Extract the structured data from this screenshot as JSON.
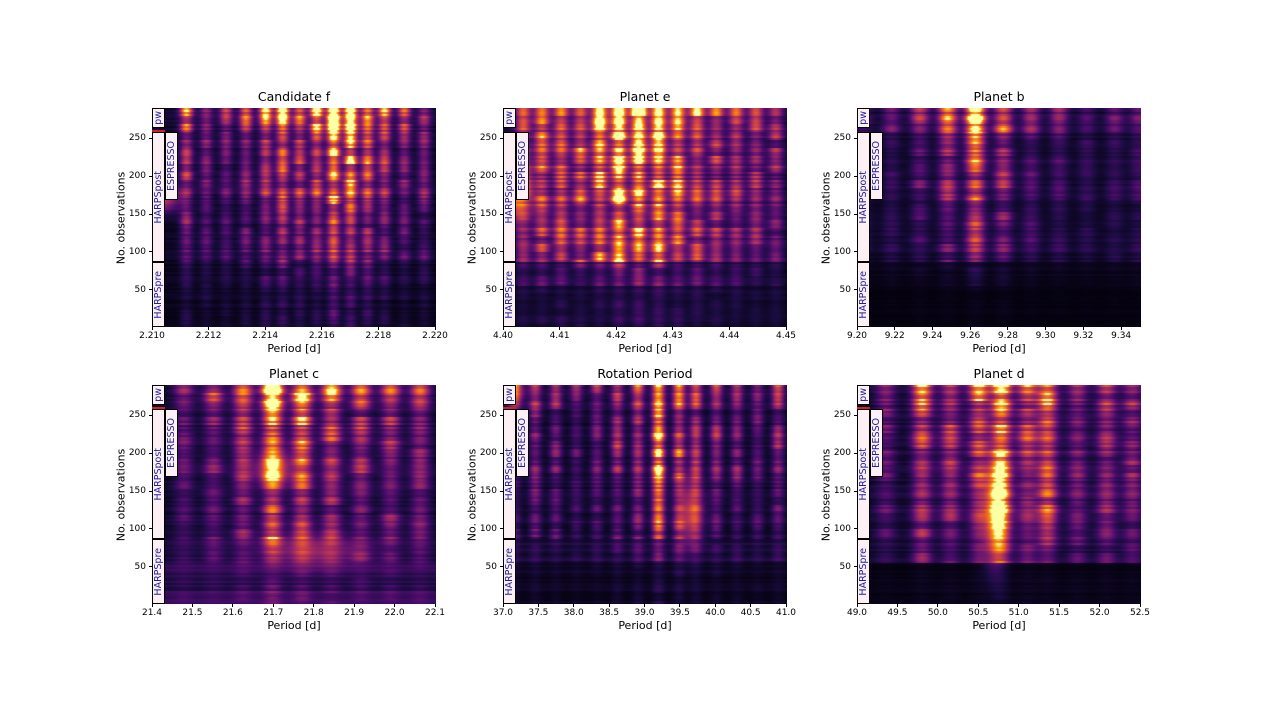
{
  "figure": {
    "background": "#ffffff",
    "text_color": "#000000",
    "colormap_name": "inferno",
    "colormap_anchors": [
      [
        0,
        0,
        4
      ],
      [
        27,
        12,
        65
      ],
      [
        74,
        12,
        107
      ],
      [
        120,
        28,
        109
      ],
      [
        165,
        44,
        96
      ],
      [
        207,
        68,
        70
      ],
      [
        237,
        105,
        37
      ],
      [
        251,
        155,
        6
      ],
      [
        252,
        255,
        164
      ]
    ],
    "instrument_box": {
      "fill": "#fdf0f5",
      "border": "#000000",
      "text": "#20209a"
    },
    "red_marker_color": "#cc2030"
  },
  "chart_data": {
    "type": "heatmap",
    "description": "Six stacked periodogram panels: power (inferno colormap, dark = low, yellow = high) versus period [d] (x) and cumulative number of observations (y). Instrument epochs HARPSpre, HARPSpost, ESPRESSO and pw are marked as boxed labels along the left edge of each panel.",
    "xlabel": "Period [d]",
    "ylabel": "No. observations",
    "ylim": [
      1,
      290
    ],
    "yticks": [
      50,
      100,
      150,
      200,
      250
    ],
    "seg_bounds": [
      1,
      55,
      87,
      168,
      258,
      290
    ],
    "instruments": [
      {
        "label": "HARPSpre",
        "column": 0,
        "obs_from": 1,
        "obs_to": 87
      },
      {
        "label": "HARPSpost",
        "column": 0,
        "obs_from": 87,
        "obs_to": 258
      },
      {
        "label": "ESPRESSO",
        "column": 1,
        "obs_from": 168,
        "obs_to": 258
      },
      {
        "label": "pw",
        "column": 0,
        "obs_from": 263,
        "obs_to": 290
      }
    ],
    "panels": [
      {
        "title": "Candidate f",
        "xlim": [
          2.21,
          2.22
        ],
        "xtick_values": [
          2.21,
          2.212,
          2.214,
          2.216,
          2.218,
          2.22
        ],
        "xtick_labels": [
          "2.210",
          "2.212",
          "2.214",
          "2.216",
          "2.218",
          "2.220"
        ],
        "peak_period": 2.2165,
        "stripe_sigma": 0.00016,
        "stripes": [
          [
            2.2112,
            0.5
          ],
          [
            2.2119,
            0.32
          ],
          [
            2.2126,
            0.3
          ],
          [
            2.2133,
            0.42
          ],
          [
            2.214,
            0.55
          ],
          [
            2.2146,
            0.72
          ],
          [
            2.2152,
            0.58
          ],
          [
            2.2158,
            0.62
          ],
          [
            2.2164,
            1.0
          ],
          [
            2.217,
            0.92
          ],
          [
            2.2176,
            0.66
          ],
          [
            2.2182,
            0.52
          ],
          [
            2.2189,
            0.38
          ],
          [
            2.2196,
            0.34
          ]
        ],
        "blobs": [
          [
            2.2103,
            170,
            0.5,
            0.00045,
            12
          ]
        ],
        "seg_mult": [
          0.18,
          0.3,
          0.55,
          0.8,
          1.0
        ],
        "seg_floor": [
          0.045,
          0.05,
          0.06,
          0.07,
          0.08
        ],
        "red_marker": true
      },
      {
        "title": "Planet e",
        "xlim": [
          4.4,
          4.45
        ],
        "xtick_values": [
          4.4,
          4.41,
          4.42,
          4.43,
          4.44,
          4.45
        ],
        "xtick_labels": [
          "4.40",
          "4.41",
          "4.42",
          "4.43",
          "4.44",
          "4.45"
        ],
        "peak_period": 4.4205,
        "stripe_sigma": 0.00095,
        "stripes": [
          [
            4.4035,
            0.45
          ],
          [
            4.4068,
            0.55
          ],
          [
            4.4102,
            0.62
          ],
          [
            4.4136,
            0.6
          ],
          [
            4.417,
            0.78
          ],
          [
            4.4204,
            1.0
          ],
          [
            4.4239,
            0.95
          ],
          [
            4.4274,
            0.88
          ],
          [
            4.4308,
            0.72
          ],
          [
            4.4342,
            0.58
          ],
          [
            4.4376,
            0.48
          ],
          [
            4.4411,
            0.42
          ],
          [
            4.4446,
            0.38
          ],
          [
            4.4481,
            0.34
          ]
        ],
        "blobs": [
          [
            4.4015,
            180,
            0.72,
            0.0022,
            25
          ]
        ],
        "seg_mult": [
          0.15,
          0.35,
          0.75,
          0.95,
          1.0
        ],
        "seg_floor": [
          0.05,
          0.06,
          0.07,
          0.07,
          0.08
        ],
        "red_marker": false
      },
      {
        "title": "Planet b",
        "xlim": [
          9.2,
          9.35
        ],
        "xtick_values": [
          9.2,
          9.22,
          9.24,
          9.26,
          9.28,
          9.3,
          9.32,
          9.34
        ],
        "xtick_labels": [
          "9.20",
          "9.22",
          "9.24",
          "9.26",
          "9.28",
          "9.30",
          "9.32",
          "9.34"
        ],
        "peak_period": 9.2625,
        "stripe_sigma": 0.0035,
        "stripes": [
          [
            9.203,
            0.18
          ],
          [
            9.218,
            0.22
          ],
          [
            9.233,
            0.35
          ],
          [
            9.2478,
            0.55
          ],
          [
            9.2625,
            1.0
          ],
          [
            9.2773,
            0.6
          ],
          [
            9.292,
            0.32
          ],
          [
            9.3068,
            0.26
          ],
          [
            9.3215,
            0.2
          ],
          [
            9.3363,
            0.2
          ],
          [
            9.349,
            0.22
          ]
        ],
        "blobs": [],
        "seg_mult": [
          0.03,
          0.1,
          0.45,
          0.65,
          1.0
        ],
        "seg_floor": [
          0.02,
          0.035,
          0.05,
          0.05,
          0.06
        ],
        "red_marker": false
      },
      {
        "title": "Planet c",
        "xlim": [
          21.4,
          22.1
        ],
        "xtick_values": [
          21.4,
          21.5,
          21.6,
          21.7,
          21.8,
          21.9,
          22.0,
          22.1
        ],
        "xtick_labels": [
          "21.4",
          "21.5",
          "21.6",
          "21.7",
          "21.8",
          "21.9",
          "22.0",
          "22.1"
        ],
        "peak_period": 21.7,
        "stripe_sigma": 0.017,
        "stripes": [
          [
            21.478,
            0.3
          ],
          [
            21.551,
            0.4
          ],
          [
            21.624,
            0.55
          ],
          [
            21.697,
            1.0
          ],
          [
            21.77,
            0.85
          ],
          [
            21.843,
            0.58
          ],
          [
            21.916,
            0.52
          ],
          [
            21.989,
            0.48
          ],
          [
            22.062,
            0.44
          ]
        ],
        "blobs": [
          [
            21.7,
            180,
            0.45,
            0.03,
            15
          ],
          [
            21.8,
            70,
            0.3,
            0.08,
            14
          ]
        ],
        "seg_mult": [
          0.15,
          0.35,
          0.6,
          0.8,
          1.0
        ],
        "seg_floor": [
          0.16,
          0.1,
          0.07,
          0.07,
          0.08
        ],
        "red_marker": true
      },
      {
        "title": "Rotation Period",
        "xlim": [
          37.0,
          41.0
        ],
        "xtick_values": [
          37.0,
          37.5,
          38.0,
          38.5,
          39.0,
          39.5,
          40.0,
          40.5,
          41.0
        ],
        "xtick_labels": [
          "37.0",
          "37.5",
          "38.0",
          "38.5",
          "39.0",
          "39.5",
          "40.0",
          "40.5",
          "41.0"
        ],
        "peak_period": 39.2,
        "stripe_sigma": 0.062,
        "stripes": [
          [
            37.16,
            0.3
          ],
          [
            37.45,
            0.4
          ],
          [
            37.74,
            0.35
          ],
          [
            38.03,
            0.25
          ],
          [
            38.32,
            0.3
          ],
          [
            38.61,
            0.45
          ],
          [
            38.9,
            0.55
          ],
          [
            39.19,
            1.0
          ],
          [
            39.48,
            0.75
          ],
          [
            39.72,
            0.5
          ],
          [
            40.01,
            0.42
          ],
          [
            40.3,
            0.36
          ],
          [
            40.59,
            0.3
          ],
          [
            40.88,
            0.38
          ]
        ],
        "blobs": [
          [
            39.65,
            120,
            0.42,
            0.12,
            30
          ],
          [
            37.15,
            283,
            0.4,
            0.1,
            14
          ]
        ],
        "seg_mult": [
          0.1,
          0.25,
          0.55,
          0.8,
          1.0
        ],
        "seg_floor": [
          0.05,
          0.09,
          0.06,
          0.06,
          0.07
        ],
        "red_marker": true
      },
      {
        "title": "Planet d",
        "xlim": [
          49.0,
          52.5
        ],
        "xtick_values": [
          49.0,
          49.5,
          50.0,
          50.5,
          51.0,
          51.5,
          52.0,
          52.5
        ],
        "xtick_labels": [
          "49.0",
          "49.5",
          "50.0",
          "50.5",
          "51.0",
          "51.5",
          "52.0",
          "52.5"
        ],
        "peak_period": 50.78,
        "stripe_sigma": 0.085,
        "stripes": [
          [
            49.35,
            0.28
          ],
          [
            49.8,
            0.62
          ],
          [
            50.15,
            0.48
          ],
          [
            50.5,
            0.55
          ],
          [
            50.78,
            1.0
          ],
          [
            51.1,
            0.52
          ],
          [
            51.35,
            0.72
          ],
          [
            51.72,
            0.4
          ],
          [
            52.08,
            0.45
          ],
          [
            52.4,
            0.36
          ]
        ],
        "blobs": [
          [
            50.7,
            120,
            0.62,
            0.09,
            45
          ]
        ],
        "seg_mult": [
          0.04,
          0.4,
          0.65,
          0.8,
          1.0
        ],
        "seg_floor": [
          0.03,
          0.08,
          0.08,
          0.08,
          0.08
        ],
        "red_marker": true
      }
    ]
  },
  "layout_note": "2 rows x 3 columns of panels"
}
